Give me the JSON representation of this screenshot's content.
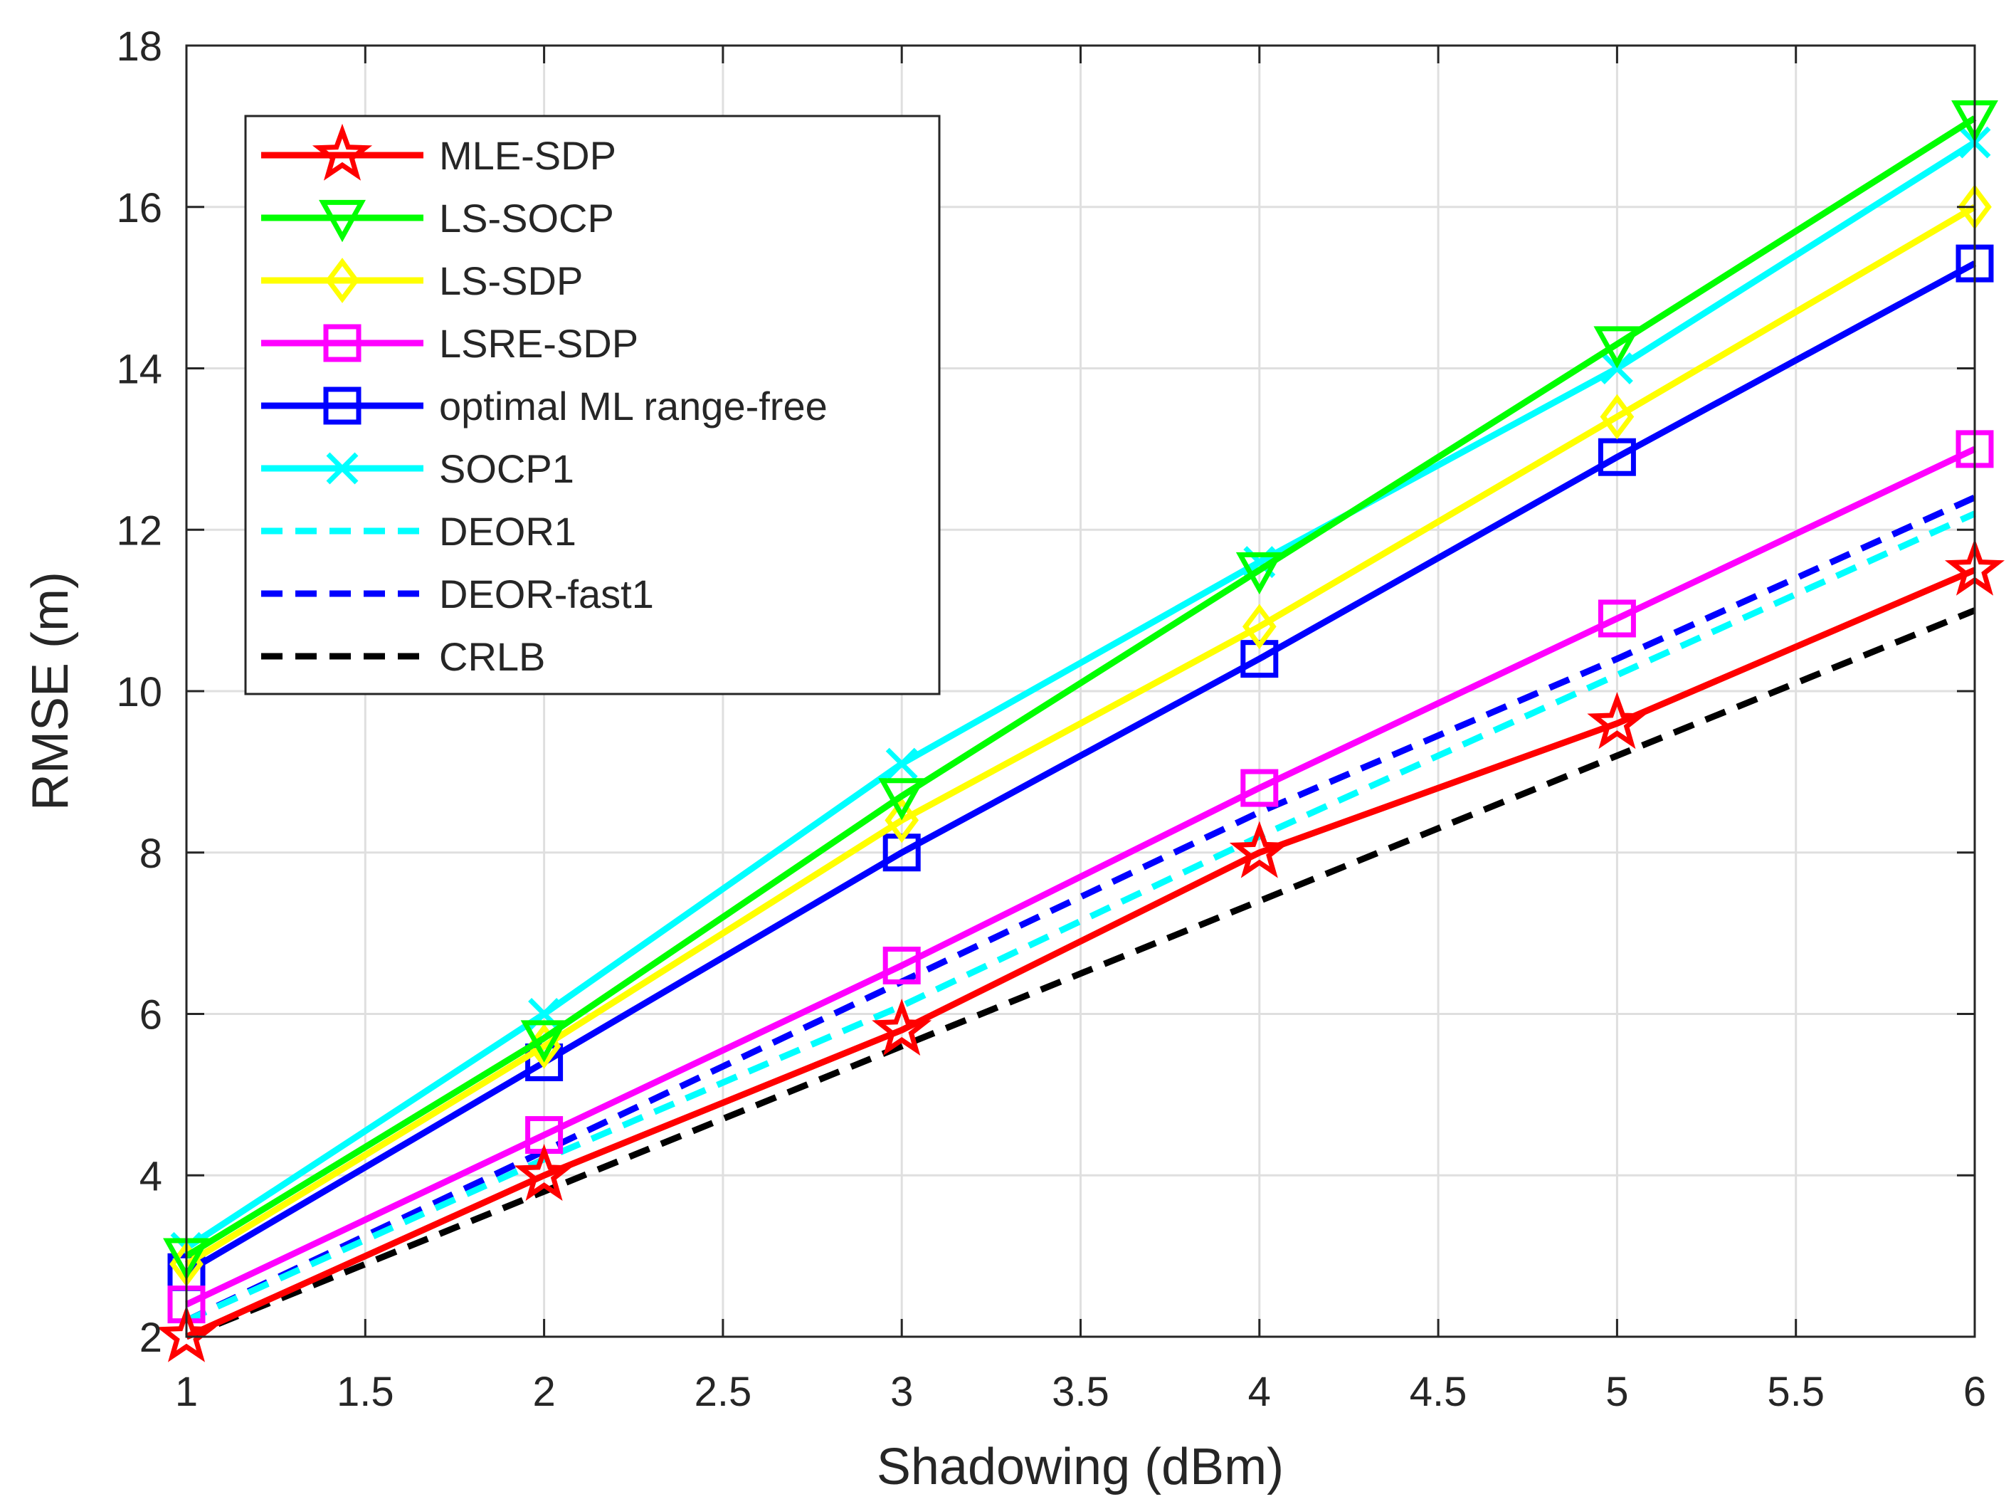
{
  "chart_data": {
    "type": "line",
    "title": "",
    "xlabel": "Shadowing (dBm)",
    "ylabel": "RMSE (m)",
    "xlim": [
      1,
      6
    ],
    "ylim": [
      2,
      18
    ],
    "xticks": [
      1,
      1.5,
      2,
      2.5,
      3,
      3.5,
      4,
      4.5,
      5,
      5.5,
      6
    ],
    "yticks": [
      2,
      4,
      6,
      8,
      10,
      12,
      14,
      16,
      18
    ],
    "xtick_labels": [
      "1",
      "1.5",
      "2",
      "2.5",
      "3",
      "3.5",
      "4",
      "4.5",
      "5",
      "5.5",
      "6"
    ],
    "ytick_labels": [
      "2",
      "4",
      "6",
      "8",
      "10",
      "12",
      "14",
      "16",
      "18"
    ],
    "grid": true,
    "legend_position": "top-left",
    "x": [
      1,
      2,
      3,
      4,
      5,
      6
    ],
    "series": [
      {
        "name": "MLE-SDP",
        "values": [
          2.0,
          4.0,
          5.8,
          8.0,
          9.6,
          11.5
        ],
        "color": "#ff0000",
        "dash": "solid",
        "marker": "star"
      },
      {
        "name": "LS-SOCP",
        "values": [
          3.0,
          5.7,
          8.7,
          11.5,
          14.3,
          17.1
        ],
        "color": "#00ff00",
        "dash": "solid",
        "marker": "triangle-down"
      },
      {
        "name": "LS-SDP",
        "values": [
          2.9,
          5.6,
          8.4,
          10.8,
          13.4,
          16.0
        ],
        "color": "#ffff00",
        "dash": "solid",
        "marker": "diamond"
      },
      {
        "name": "LSRE-SDP",
        "values": [
          2.4,
          4.5,
          6.6,
          8.8,
          10.9,
          13.0
        ],
        "color": "#ff00ff",
        "dash": "solid",
        "marker": "square"
      },
      {
        "name": "optimal ML range-free",
        "values": [
          2.8,
          5.4,
          8.0,
          10.4,
          12.9,
          15.3
        ],
        "color": "#0000ff",
        "dash": "solid",
        "marker": "square"
      },
      {
        "name": "SOCP1",
        "values": [
          3.1,
          6.0,
          9.1,
          11.6,
          14.0,
          16.8
        ],
        "color": "#00ffff",
        "dash": "solid",
        "marker": "x"
      },
      {
        "name": "DEOR1",
        "values": [
          2.2,
          4.2,
          6.1,
          8.2,
          10.2,
          12.2
        ],
        "color": "#00ffff",
        "dash": "dashed",
        "marker": "none"
      },
      {
        "name": "DEOR-fast1",
        "values": [
          2.2,
          4.3,
          6.4,
          8.5,
          10.4,
          12.4
        ],
        "color": "#0000ff",
        "dash": "dashed",
        "marker": "none"
      },
      {
        "name": "CRLB",
        "values": [
          2.0,
          3.8,
          5.6,
          7.4,
          9.2,
          11.0
        ],
        "color": "#000000",
        "dash": "dashed",
        "marker": "none"
      }
    ]
  }
}
